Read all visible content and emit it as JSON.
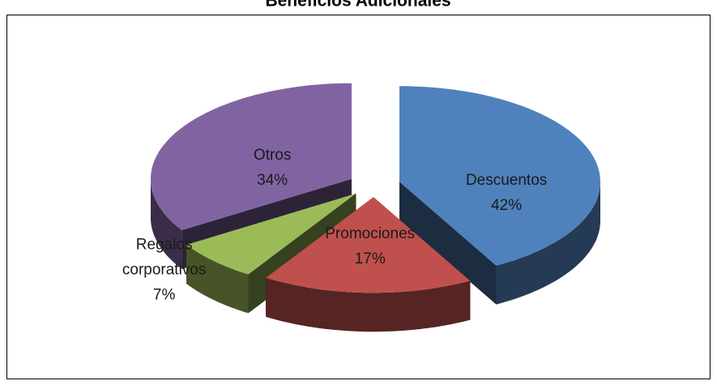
{
  "chart_data": {
    "type": "pie3d",
    "title": "Beneficios Adicionales",
    "categories": [
      "Descuentos",
      "Promociones",
      "Regalos corporativos",
      "Otros"
    ],
    "values": [
      42,
      17,
      7,
      34
    ],
    "value_labels": [
      "42%",
      "17%",
      "7%",
      "34%"
    ],
    "colors": [
      "#4f81bd",
      "#c0504d",
      "#9bbb59",
      "#8064a2"
    ]
  }
}
